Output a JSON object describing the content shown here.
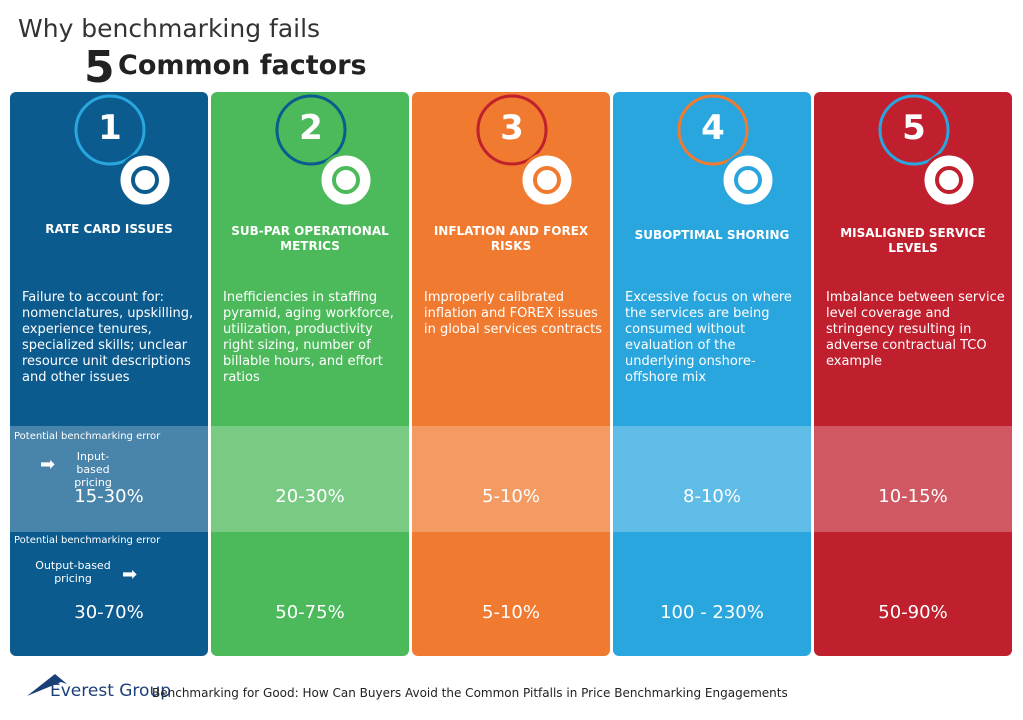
{
  "header": {
    "title": "Why benchmarking fails",
    "number": "5",
    "subtitle": "Common factors"
  },
  "row_labels": {
    "input_caption": "Potential benchmarking error",
    "input_label": "Input-based pricing",
    "output_caption": "Potential benchmarking error",
    "output_label": "Output-based pricing"
  },
  "factors": [
    {
      "number": "1",
      "title": "RATE CARD ISSUES",
      "description": "Failure to account for: nomenclatures, upskilling, experience tenures, specialized skills; unclear resource unit descriptions and other issues",
      "input_error": "15-30%",
      "output_error": "30-70%"
    },
    {
      "number": "2",
      "title": "SUB-PAR OPERATIONAL METRICS",
      "description": "Inefficiencies in staffing pyramid, aging workforce, utilization, productivity right sizing, number of billable hours, and effort ratios",
      "input_error": "20-30%",
      "output_error": "50-75%"
    },
    {
      "number": "3",
      "title": "INFLATION AND FOREX RISKS",
      "description": "Improperly calibrated inflation and FOREX issues in global services contracts",
      "input_error": "5-10%",
      "output_error": "5-10%"
    },
    {
      "number": "4",
      "title": "SUBOPTIMAL SHORING",
      "description": "Excessive focus on where the services are being consumed without evaluation of the underlying onshore-offshore mix",
      "input_error": "8-10%",
      "output_error": "100 - 230%"
    },
    {
      "number": "5",
      "title": "MISALIGNED SERVICE LEVELS",
      "description": "Imbalance between service level coverage and stringency resulting in adverse contractual TCO example",
      "input_error": "10-15%",
      "output_error": "50-90%"
    }
  ],
  "footer": {
    "brand": "Everest Group",
    "source": "Benchmarking for Good: How Can Buyers Avoid the Common Pitfalls in Price Benchmarking Engagements"
  }
}
